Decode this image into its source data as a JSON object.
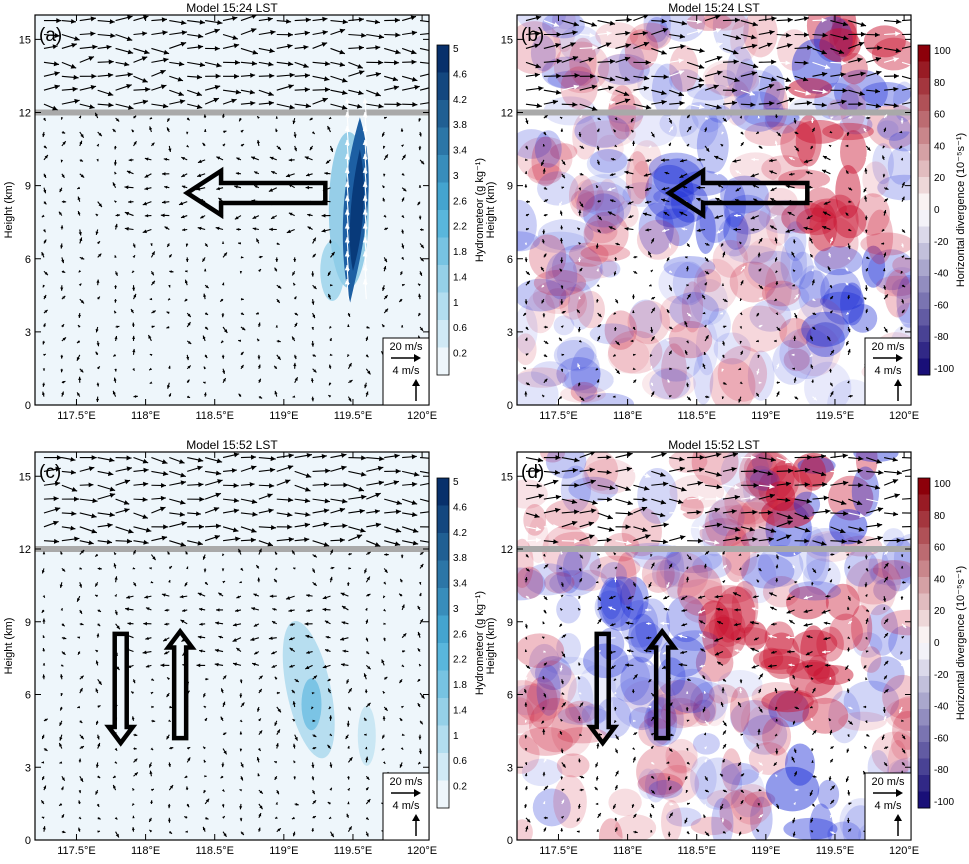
{
  "chart_data": [
    {
      "type": "heatmap",
      "panel_label": "(a)",
      "title": "Model 15:24 LST",
      "ylabel": "Height (km)",
      "x_ticks": [
        "117.5°E",
        "118°E",
        "118.5°E",
        "119°E",
        "119.5°E",
        "120°E"
      ],
      "y_ticks": [
        "0",
        "3",
        "6",
        "9",
        "12",
        "15"
      ],
      "x_tick_values": [
        117.5,
        118,
        118.5,
        119,
        119.5,
        120
      ],
      "y_tick_values": [
        0,
        3,
        6,
        9,
        12,
        15
      ],
      "xlim": [
        117.2,
        120.05
      ],
      "ylim": [
        0,
        16
      ],
      "field": "hydrometeor",
      "reference_line_height": 12,
      "colorbar": {
        "label": "Hydrometeor (g kg⁻¹)",
        "ticks": [
          "0.2",
          "0.6",
          "1",
          "1.4",
          "1.8",
          "2.2",
          "2.6",
          "3",
          "3.4",
          "3.8",
          "4.2",
          "4.6",
          "5"
        ]
      },
      "vector_key": {
        "horizontal": "20 m/s",
        "vertical": "4 m/s"
      },
      "big_arrows": [
        {
          "direction": "left",
          "x_from": 119.3,
          "x_to": 118.3,
          "height": 8.7
        }
      ]
    },
    {
      "type": "heatmap",
      "panel_label": "(b)",
      "title": "Model 15:24 LST",
      "ylabel": "Height (km)",
      "x_ticks": [
        "117.5°E",
        "118°E",
        "118.5°E",
        "119°E",
        "119.5°E",
        "120°E"
      ],
      "y_ticks": [
        "0",
        "3",
        "6",
        "9",
        "12",
        "15"
      ],
      "x_tick_values": [
        117.5,
        118,
        118.5,
        119,
        119.5,
        120
      ],
      "y_tick_values": [
        0,
        3,
        6,
        9,
        12,
        15
      ],
      "xlim": [
        117.2,
        120.05
      ],
      "ylim": [
        0,
        16
      ],
      "field": "divergence",
      "reference_line_height": 12,
      "colorbar": {
        "label": "Horizontal divergence (10⁻⁵s⁻¹)",
        "ticks": [
          "100",
          "80",
          "60",
          "40",
          "20",
          "0",
          "-20",
          "-40",
          "-60",
          "-80",
          "-100"
        ]
      },
      "vector_key": {
        "horizontal": "20 m/s",
        "vertical": "4 m/s"
      },
      "big_arrows": [
        {
          "direction": "left",
          "x_from": 119.3,
          "x_to": 118.3,
          "height": 8.7
        }
      ]
    },
    {
      "type": "heatmap",
      "panel_label": "(c)",
      "title": "Model 15:52 LST",
      "ylabel": "Height (km)",
      "x_ticks": [
        "117.5°E",
        "118°E",
        "118.5°E",
        "119°E",
        "119.5°E",
        "120°E"
      ],
      "y_ticks": [
        "0",
        "3",
        "6",
        "9",
        "12",
        "15"
      ],
      "x_tick_values": [
        117.5,
        118,
        118.5,
        119,
        119.5,
        120
      ],
      "y_tick_values": [
        0,
        3,
        6,
        9,
        12,
        15
      ],
      "xlim": [
        117.2,
        120.05
      ],
      "ylim": [
        0,
        16
      ],
      "field": "hydrometeor",
      "reference_line_height": 12,
      "colorbar": {
        "label": "Hydrometeor (g kg⁻¹)",
        "ticks": [
          "0.2",
          "0.6",
          "1",
          "1.4",
          "1.8",
          "2.2",
          "2.6",
          "3",
          "3.4",
          "3.8",
          "4.2",
          "4.6",
          "5"
        ]
      },
      "vector_key": {
        "horizontal": "20 m/s",
        "vertical": "4 m/s"
      },
      "big_arrows": [
        {
          "direction": "down",
          "x": 117.82,
          "y_from": 8.5,
          "y_to": 4
        },
        {
          "direction": "up",
          "x": 118.25,
          "y_from": 4.2,
          "y_to": 8.6
        }
      ]
    },
    {
      "type": "heatmap",
      "panel_label": "(d)",
      "title": "Model 15:52 LST",
      "ylabel": "Height (km)",
      "x_ticks": [
        "117.5°E",
        "118°E",
        "118.5°E",
        "119°E",
        "119.5°E",
        "120°E"
      ],
      "y_ticks": [
        "0",
        "3",
        "6",
        "9",
        "12",
        "15"
      ],
      "x_tick_values": [
        117.5,
        118,
        118.5,
        119,
        119.5,
        120
      ],
      "y_tick_values": [
        0,
        3,
        6,
        9,
        12,
        15
      ],
      "xlim": [
        117.2,
        120.05
      ],
      "ylim": [
        0,
        16
      ],
      "field": "divergence",
      "reference_line_height": 12,
      "colorbar": {
        "label": "Horizontal divergence (10⁻⁵s⁻¹)",
        "ticks": [
          "100",
          "80",
          "60",
          "40",
          "20",
          "0",
          "-20",
          "-40",
          "-60",
          "-80",
          "-100"
        ]
      },
      "vector_key": {
        "horizontal": "20 m/s",
        "vertical": "4 m/s"
      },
      "big_arrows": [
        {
          "direction": "down",
          "x": 117.82,
          "y_from": 8.5,
          "y_to": 4
        },
        {
          "direction": "up",
          "x": 118.25,
          "y_from": 4.2,
          "y_to": 8.6
        }
      ]
    }
  ],
  "colors": {
    "hydro_low": "#eef6fb",
    "hydro_mid": "#4ab0d9",
    "hydro_high": "#08306b",
    "div_pos": "#c8102e",
    "div_neg": "#1a2bd6",
    "ref_line": "#a9a9a9",
    "vector": "#000000"
  }
}
